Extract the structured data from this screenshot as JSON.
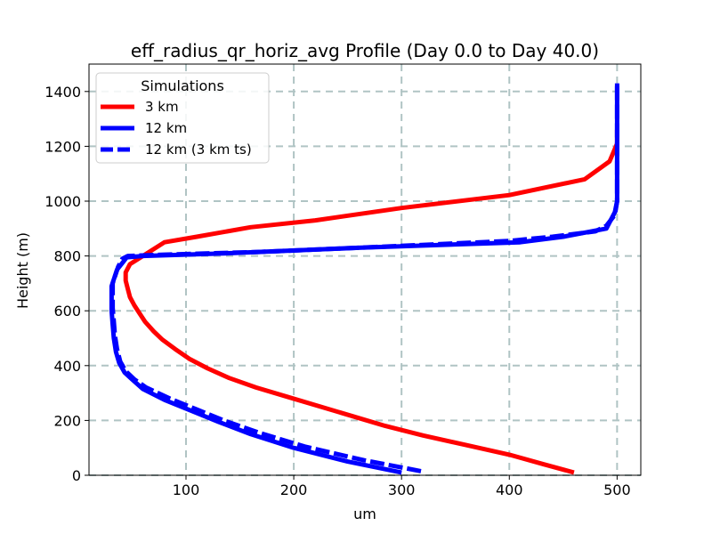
{
  "chart_data": {
    "type": "line",
    "title": "eff_radius_qr_horiz_avg Profile (Day 0.0 to Day 40.0)",
    "xlabel": "um",
    "ylabel": "Height (m)",
    "xlim": [
      10,
      522
    ],
    "ylim": [
      0,
      1500
    ],
    "xticks": [
      100,
      200,
      300,
      400,
      500
    ],
    "yticks": [
      0,
      200,
      400,
      600,
      800,
      1000,
      1200,
      1400
    ],
    "grid": true,
    "legend": {
      "title": "Simulations",
      "position": "upper-left"
    },
    "series": [
      {
        "name": "3 km",
        "color": "#ff0000",
        "dash": "solid",
        "points": [
          [
            460,
            10
          ],
          [
            432,
            40
          ],
          [
            400,
            75
          ],
          [
            360,
            110
          ],
          [
            320,
            145
          ],
          [
            285,
            180
          ],
          [
            255,
            215
          ],
          [
            225,
            250
          ],
          [
            195,
            285
          ],
          [
            165,
            320
          ],
          [
            140,
            355
          ],
          [
            120,
            390
          ],
          [
            103,
            425
          ],
          [
            90,
            460
          ],
          [
            78,
            495
          ],
          [
            70,
            525
          ],
          [
            62,
            560
          ],
          [
            57,
            590
          ],
          [
            52,
            620
          ],
          [
            48,
            650
          ],
          [
            46,
            680
          ],
          [
            44,
            710
          ],
          [
            44,
            740
          ],
          [
            48,
            770
          ],
          [
            60,
            800
          ],
          [
            80,
            850
          ],
          [
            110,
            870
          ],
          [
            160,
            905
          ],
          [
            220,
            930
          ],
          [
            300,
            975
          ],
          [
            400,
            1022
          ],
          [
            470,
            1080
          ],
          [
            493,
            1145
          ],
          [
            500,
            1210
          ],
          [
            500,
            1260
          ]
        ]
      },
      {
        "name": "12 km",
        "color": "#0000ff",
        "dash": "solid",
        "points": [
          [
            300,
            10
          ],
          [
            250,
            50
          ],
          [
            200,
            100
          ],
          [
            160,
            150
          ],
          [
            130,
            195
          ],
          [
            105,
            235
          ],
          [
            80,
            275
          ],
          [
            60,
            315
          ],
          [
            50,
            350
          ],
          [
            43,
            375
          ],
          [
            38,
            410
          ],
          [
            35,
            450
          ],
          [
            33,
            500
          ],
          [
            32,
            550
          ],
          [
            31,
            600
          ],
          [
            31,
            650
          ],
          [
            31,
            690
          ],
          [
            36,
            750
          ],
          [
            42,
            780
          ],
          [
            45,
            795
          ],
          [
            60,
            800
          ],
          [
            140,
            810
          ],
          [
            260,
            830
          ],
          [
            410,
            850
          ],
          [
            450,
            870
          ],
          [
            490,
            900
          ],
          [
            498,
            960
          ],
          [
            500,
            1000
          ],
          [
            500,
            1100
          ],
          [
            500,
            1200
          ],
          [
            500,
            1300
          ],
          [
            500,
            1430
          ]
        ]
      },
      {
        "name": "12 km (3 km ts)",
        "color": "#0000ff",
        "dash": "dashed",
        "points": [
          [
            318,
            15
          ],
          [
            265,
            55
          ],
          [
            210,
            105
          ],
          [
            168,
            155
          ],
          [
            135,
            200
          ],
          [
            110,
            240
          ],
          [
            85,
            280
          ],
          [
            63,
            320
          ],
          [
            52,
            350
          ],
          [
            44,
            380
          ],
          [
            39,
            415
          ],
          [
            36,
            460
          ],
          [
            34,
            510
          ],
          [
            33,
            560
          ],
          [
            32,
            610
          ],
          [
            32,
            660
          ],
          [
            32,
            700
          ],
          [
            37,
            760
          ],
          [
            41,
            790
          ],
          [
            46,
            800
          ],
          [
            80,
            805
          ],
          [
            170,
            815
          ],
          [
            290,
            835
          ],
          [
            400,
            855
          ],
          [
            440,
            870
          ],
          [
            480,
            890
          ],
          [
            490,
            910
          ],
          [
            498,
            950
          ],
          [
            500,
            1000
          ],
          [
            500,
            1100
          ],
          [
            500,
            1200
          ],
          [
            500,
            1300
          ],
          [
            500,
            1420
          ]
        ]
      }
    ]
  }
}
